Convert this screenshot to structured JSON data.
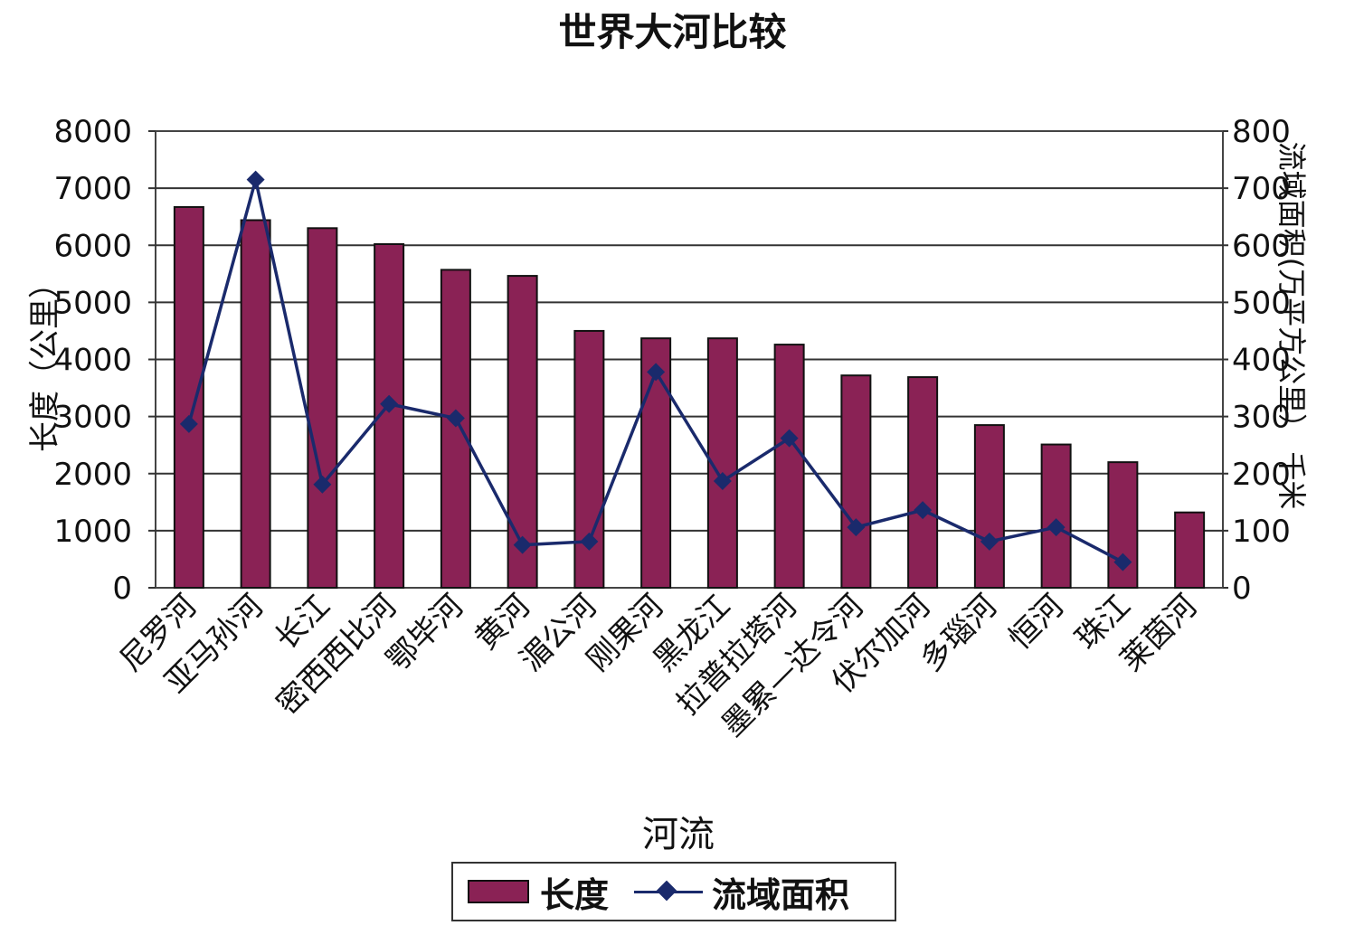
{
  "chart_data": {
    "type": "bar",
    "title": "世界大河比较",
    "xlabel": "河流",
    "ylabel": "长度（公里）",
    "y2label": "流域面积(万平方公里） 千米",
    "categories": [
      "尼罗河",
      "亚马孙河",
      "长江",
      "密西西比河",
      "鄂毕河",
      "黄河",
      "湄公河",
      "刚果河",
      "黑龙江",
      "拉普拉塔河",
      "墨累—达令河",
      "伏尔加河",
      "多瑙河",
      "恒河",
      "珠江",
      "莱茵河"
    ],
    "ylim": [
      0,
      8000
    ],
    "y2lim": [
      0,
      800
    ],
    "yticks": [
      "0",
      "1000",
      "2000",
      "3000",
      "4000",
      "5000",
      "6000",
      "7000",
      "8000"
    ],
    "y2ticks": [
      "0",
      "100",
      "200",
      "300",
      "400",
      "500",
      "600",
      "700",
      "800"
    ],
    "grid": true,
    "legend_position": "bottom",
    "series": [
      {
        "name": "长度",
        "type": "bar",
        "axis": "left",
        "color": "#8a2255",
        "values": [
          6670,
          6440,
          6300,
          6020,
          5570,
          5464,
          4500,
          4370,
          4370,
          4260,
          3720,
          3690,
          2850,
          2510,
          2200,
          1320
        ]
      },
      {
        "name": "流域面积",
        "type": "line",
        "axis": "right",
        "color": "#1a2a6c",
        "marker": "diamond",
        "values": [
          287,
          715,
          181,
          322,
          297,
          75,
          81,
          378,
          187,
          262,
          106,
          136,
          81,
          106,
          45,
          null
        ]
      }
    ]
  }
}
